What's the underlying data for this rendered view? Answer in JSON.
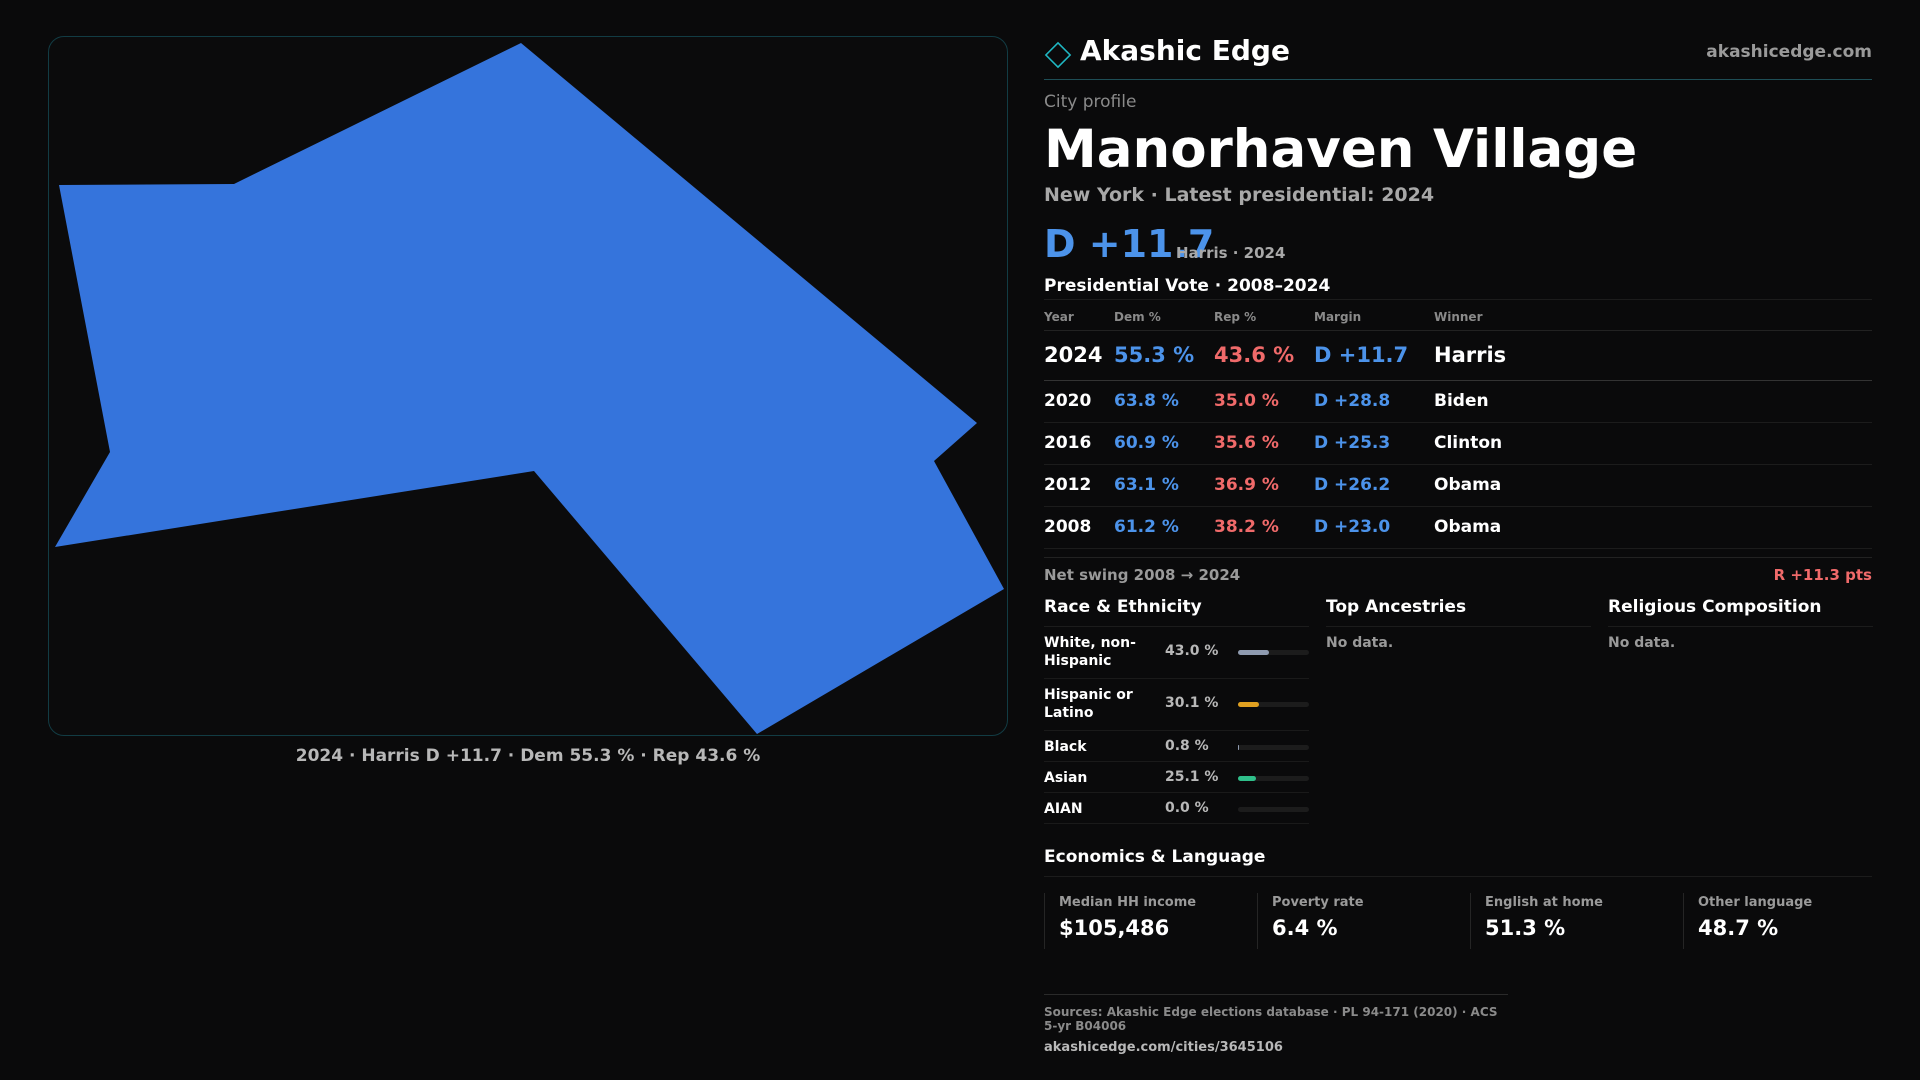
{
  "brand": {
    "name": "Akashic Edge",
    "url": "akashicedge.com",
    "accent": "#1fb7c2"
  },
  "map": {
    "fill_color": "#3574dc",
    "caption": "2024 · Harris D +11.7 · Dem 55.3 % · Rep 43.6 %"
  },
  "profile": {
    "eyebrow": "City profile",
    "title": "Manorhaven Village",
    "subtitle": "New York  · Latest presidential: 2024",
    "headline_margin": "D +11.7",
    "headline_note": "Harris · 2024"
  },
  "vote": {
    "title": "Presidential Vote · 2008–2024",
    "headers": {
      "year": "Year",
      "dem": "Dem %",
      "rep": "Rep %",
      "margin": "Margin",
      "winner": "Winner"
    },
    "rows": [
      {
        "year": "2024",
        "dem": "55.3 %",
        "rep": "43.6 %",
        "margin": "D +11.7",
        "winner": "Harris"
      },
      {
        "year": "2020",
        "dem": "63.8 %",
        "rep": "35.0 %",
        "margin": "D +28.8",
        "winner": "Biden"
      },
      {
        "year": "2016",
        "dem": "60.9 %",
        "rep": "35.6 %",
        "margin": "D +25.3",
        "winner": "Clinton"
      },
      {
        "year": "2012",
        "dem": "63.1 %",
        "rep": "36.9 %",
        "margin": "D +26.2",
        "winner": "Obama"
      },
      {
        "year": "2008",
        "dem": "61.2 %",
        "rep": "38.2 %",
        "margin": "D +23.0",
        "winner": "Obama"
      }
    ],
    "dem_color": "#4c93ea",
    "rep_color": "#f06a6a"
  },
  "swing": {
    "label": "Net swing 2008 → 2024",
    "value": "R +11.3 pts"
  },
  "race": {
    "title": "Race & Ethnicity",
    "items": [
      {
        "name": "White, non-Hispanic",
        "pct": "43.0 %",
        "share": 0.43,
        "color": "#8f9bb0"
      },
      {
        "name": "Hispanic or Latino",
        "pct": "30.1 %",
        "share": 0.301,
        "color": "#e0a020"
      },
      {
        "name": "Black",
        "pct": "0.8 %",
        "share": 0.008,
        "color": "#8f9bb0"
      },
      {
        "name": "Asian",
        "pct": "25.1 %",
        "share": 0.251,
        "color": "#2fbf8a"
      },
      {
        "name": "AIAN",
        "pct": "0.0 %",
        "share": 0.0,
        "color": "#8f9bb0"
      }
    ]
  },
  "ancestries": {
    "title": "Top Ancestries",
    "empty": "No data."
  },
  "religion": {
    "title": "Religious Composition",
    "empty": "No data."
  },
  "economics": {
    "title": "Economics & Language",
    "stats": [
      {
        "label": "Median HH income",
        "value": "$105,486"
      },
      {
        "label": "Poverty rate",
        "value": "6.4 %"
      },
      {
        "label": "English at home",
        "value": "51.3 %"
      },
      {
        "label": "Other language",
        "value": "48.7 %"
      }
    ]
  },
  "footer": {
    "sources": "Sources: Akashic Edge elections database · PL 94-171 (2020) · ACS 5-yr B04006",
    "url": "akashicedge.com/cities/3645106"
  }
}
